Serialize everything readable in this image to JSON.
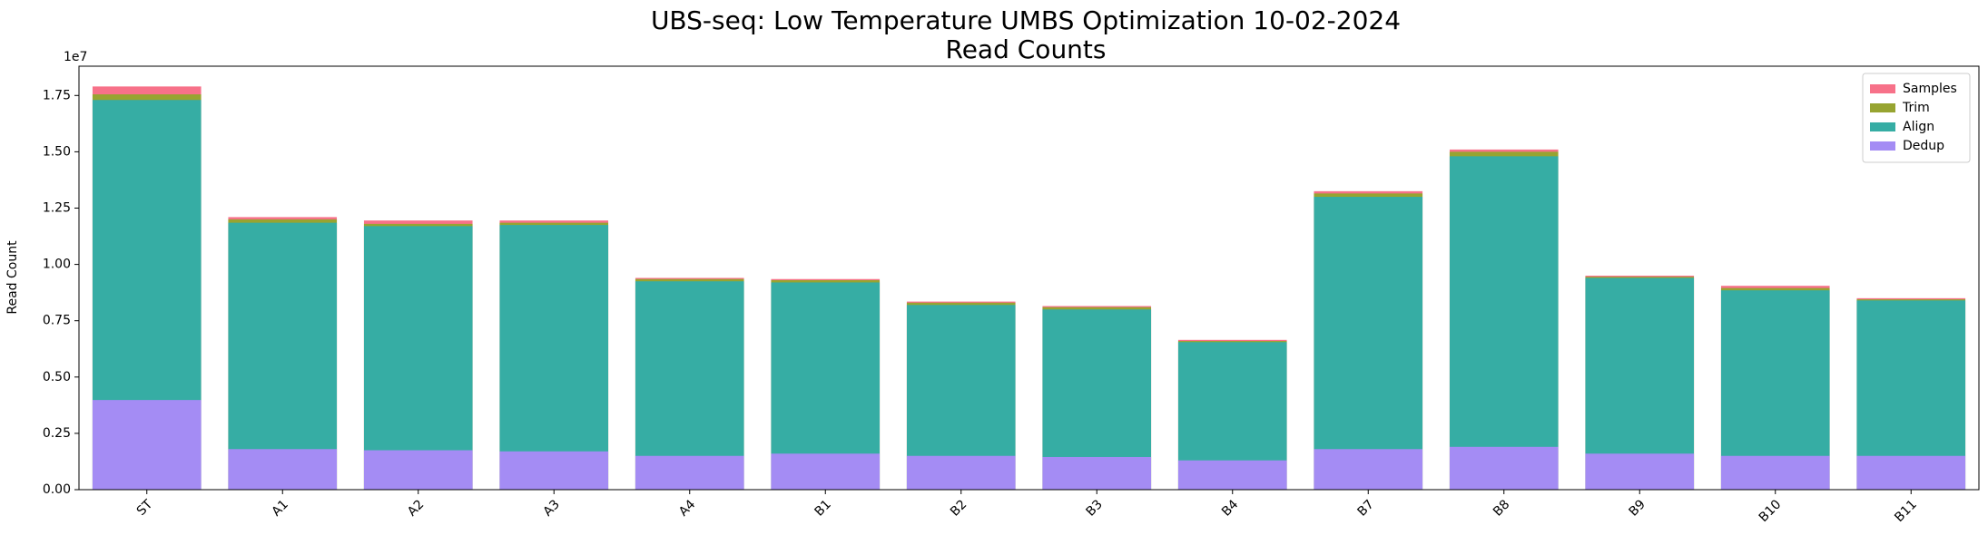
{
  "chart_data": {
    "type": "bar",
    "overlap": true,
    "title": "UBS-seq: Low Temperature UMBS Optimization 10-02-2024",
    "subtitle": "Read Counts",
    "ylabel": "Read Count",
    "y_offset_label": "1e7",
    "categories": [
      "ST",
      "A1",
      "A2",
      "A3",
      "A4",
      "B1",
      "B2",
      "B3",
      "B4",
      "B7",
      "B8",
      "B9",
      "B10",
      "B11"
    ],
    "series": [
      {
        "name": "Samples",
        "color": "#f77189",
        "values": [
          17900000,
          12100000,
          11950000,
          11950000,
          9400000,
          9350000,
          8350000,
          8150000,
          6650000,
          13250000,
          15100000,
          9500000,
          9050000,
          8500000
        ]
      },
      {
        "name": "Trim",
        "color": "#97a431",
        "values": [
          17550000,
          12000000,
          11800000,
          11850000,
          9350000,
          9300000,
          8300000,
          8100000,
          6600000,
          13150000,
          15000000,
          9450000,
          8950000,
          8450000
        ]
      },
      {
        "name": "Align",
        "color": "#36ada4",
        "values": [
          17300000,
          11850000,
          11700000,
          11750000,
          9250000,
          9200000,
          8200000,
          8000000,
          6550000,
          13000000,
          14800000,
          9400000,
          8850000,
          8400000
        ]
      },
      {
        "name": "Dedup",
        "color": "#a48cf4",
        "values": [
          3980000,
          1800000,
          1750000,
          1700000,
          1500000,
          1600000,
          1500000,
          1450000,
          1300000,
          1800000,
          1900000,
          1600000,
          1500000,
          1500000
        ]
      }
    ],
    "ylim": [
      0,
      18800000
    ],
    "yticks": [
      {
        "value": 0,
        "label": "0.00"
      },
      {
        "value": 2500000,
        "label": "0.25"
      },
      {
        "value": 5000000,
        "label": "0.50"
      },
      {
        "value": 7500000,
        "label": "0.75"
      },
      {
        "value": 10000000,
        "label": "1.00"
      },
      {
        "value": 12500000,
        "label": "1.25"
      },
      {
        "value": 15000000,
        "label": "1.50"
      },
      {
        "value": 17500000,
        "label": "1.75"
      }
    ],
    "legend": "upper right"
  }
}
